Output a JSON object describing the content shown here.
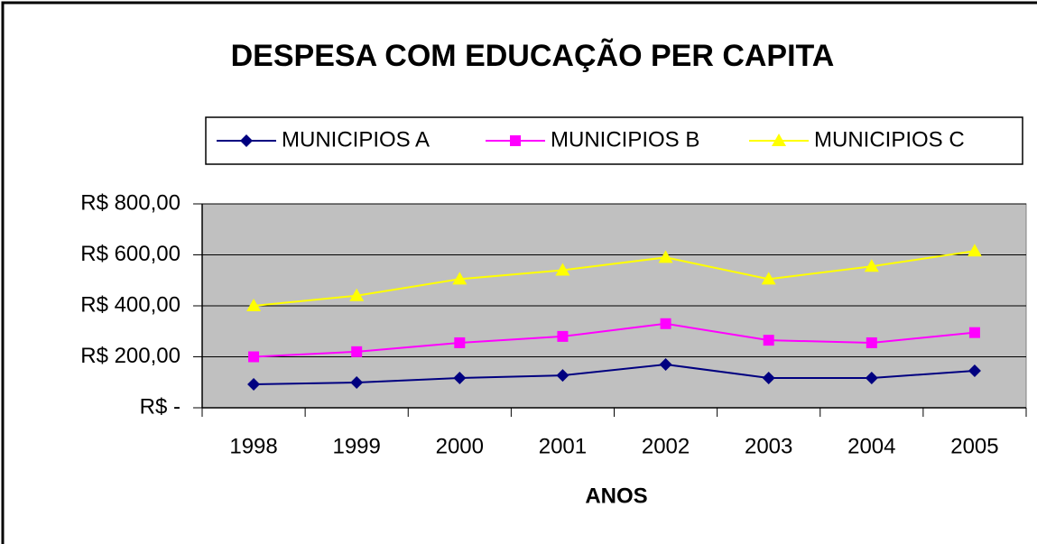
{
  "chart_data": {
    "type": "line",
    "title": "DESPESA COM EDUCAÇÃO PER CAPITA",
    "x_label": "ANOS",
    "categories": [
      "1998",
      "1999",
      "2000",
      "2001",
      "2002",
      "2003",
      "2004",
      "2005"
    ],
    "series": [
      {
        "name": "MUNICIPIOS A",
        "color": "#000080",
        "marker": "diamond",
        "values": [
          92,
          99,
          117,
          127,
          170,
          117,
          117,
          145
        ]
      },
      {
        "name": "MUNICIPIOS B",
        "color": "#ff00ff",
        "marker": "square",
        "values": [
          200,
          220,
          255,
          280,
          330,
          265,
          255,
          295
        ]
      },
      {
        "name": "MUNICIPIOS C",
        "color": "#ffff00",
        "marker": "triangle",
        "values": [
          400,
          440,
          505,
          540,
          590,
          505,
          555,
          615
        ]
      }
    ],
    "ylim": [
      0,
      800
    ],
    "yticks": [
      {
        "value": 0,
        "label": "R$ -"
      },
      {
        "value": 200,
        "label": "R$ 200,00"
      },
      {
        "value": 400,
        "label": "R$ 400,00"
      },
      {
        "value": 600,
        "label": "R$ 600,00"
      },
      {
        "value": 800,
        "label": "R$ 800,00"
      }
    ],
    "grid": true,
    "legend": "top"
  }
}
